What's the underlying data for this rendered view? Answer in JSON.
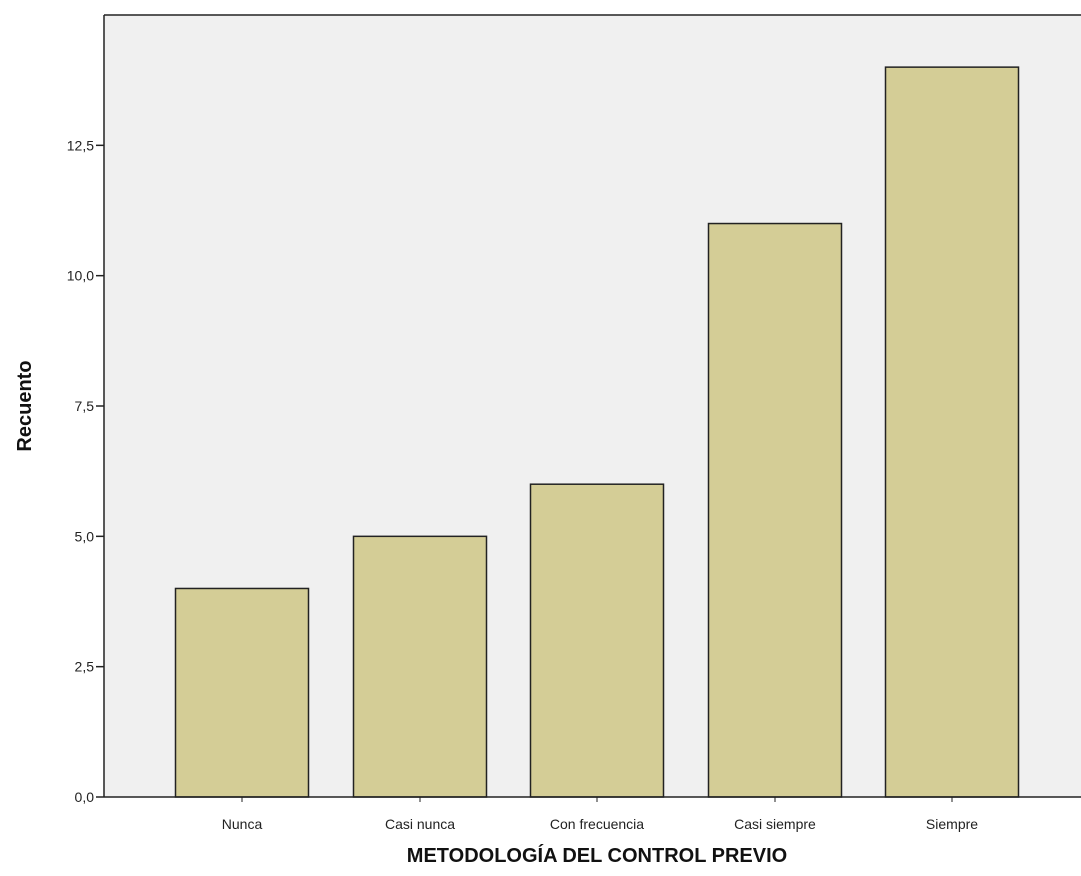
{
  "chart_data": {
    "type": "bar",
    "title": "",
    "xlabel": "METODOLOGÍA DEL CONTROL PREVIO",
    "ylabel": "Recuento",
    "categories": [
      "Nunca",
      "Casi nunca",
      "Con frecuencia",
      "Casi siempre",
      "Siempre"
    ],
    "values": [
      4,
      5,
      6,
      11,
      14
    ],
    "ylim": [
      0,
      15
    ],
    "yticks": [
      0,
      2.5,
      5,
      7.5,
      10,
      12.5
    ],
    "ytick_labels": [
      "0,0",
      "2,5",
      "5,0",
      "7,5",
      "10,0",
      "12,5"
    ],
    "grid": false,
    "legend": "none",
    "colors": {
      "bar_fill": "#d4cd96",
      "bar_stroke": "#222222",
      "plot_background": "#f0f0f0",
      "axis": "#222222"
    }
  }
}
